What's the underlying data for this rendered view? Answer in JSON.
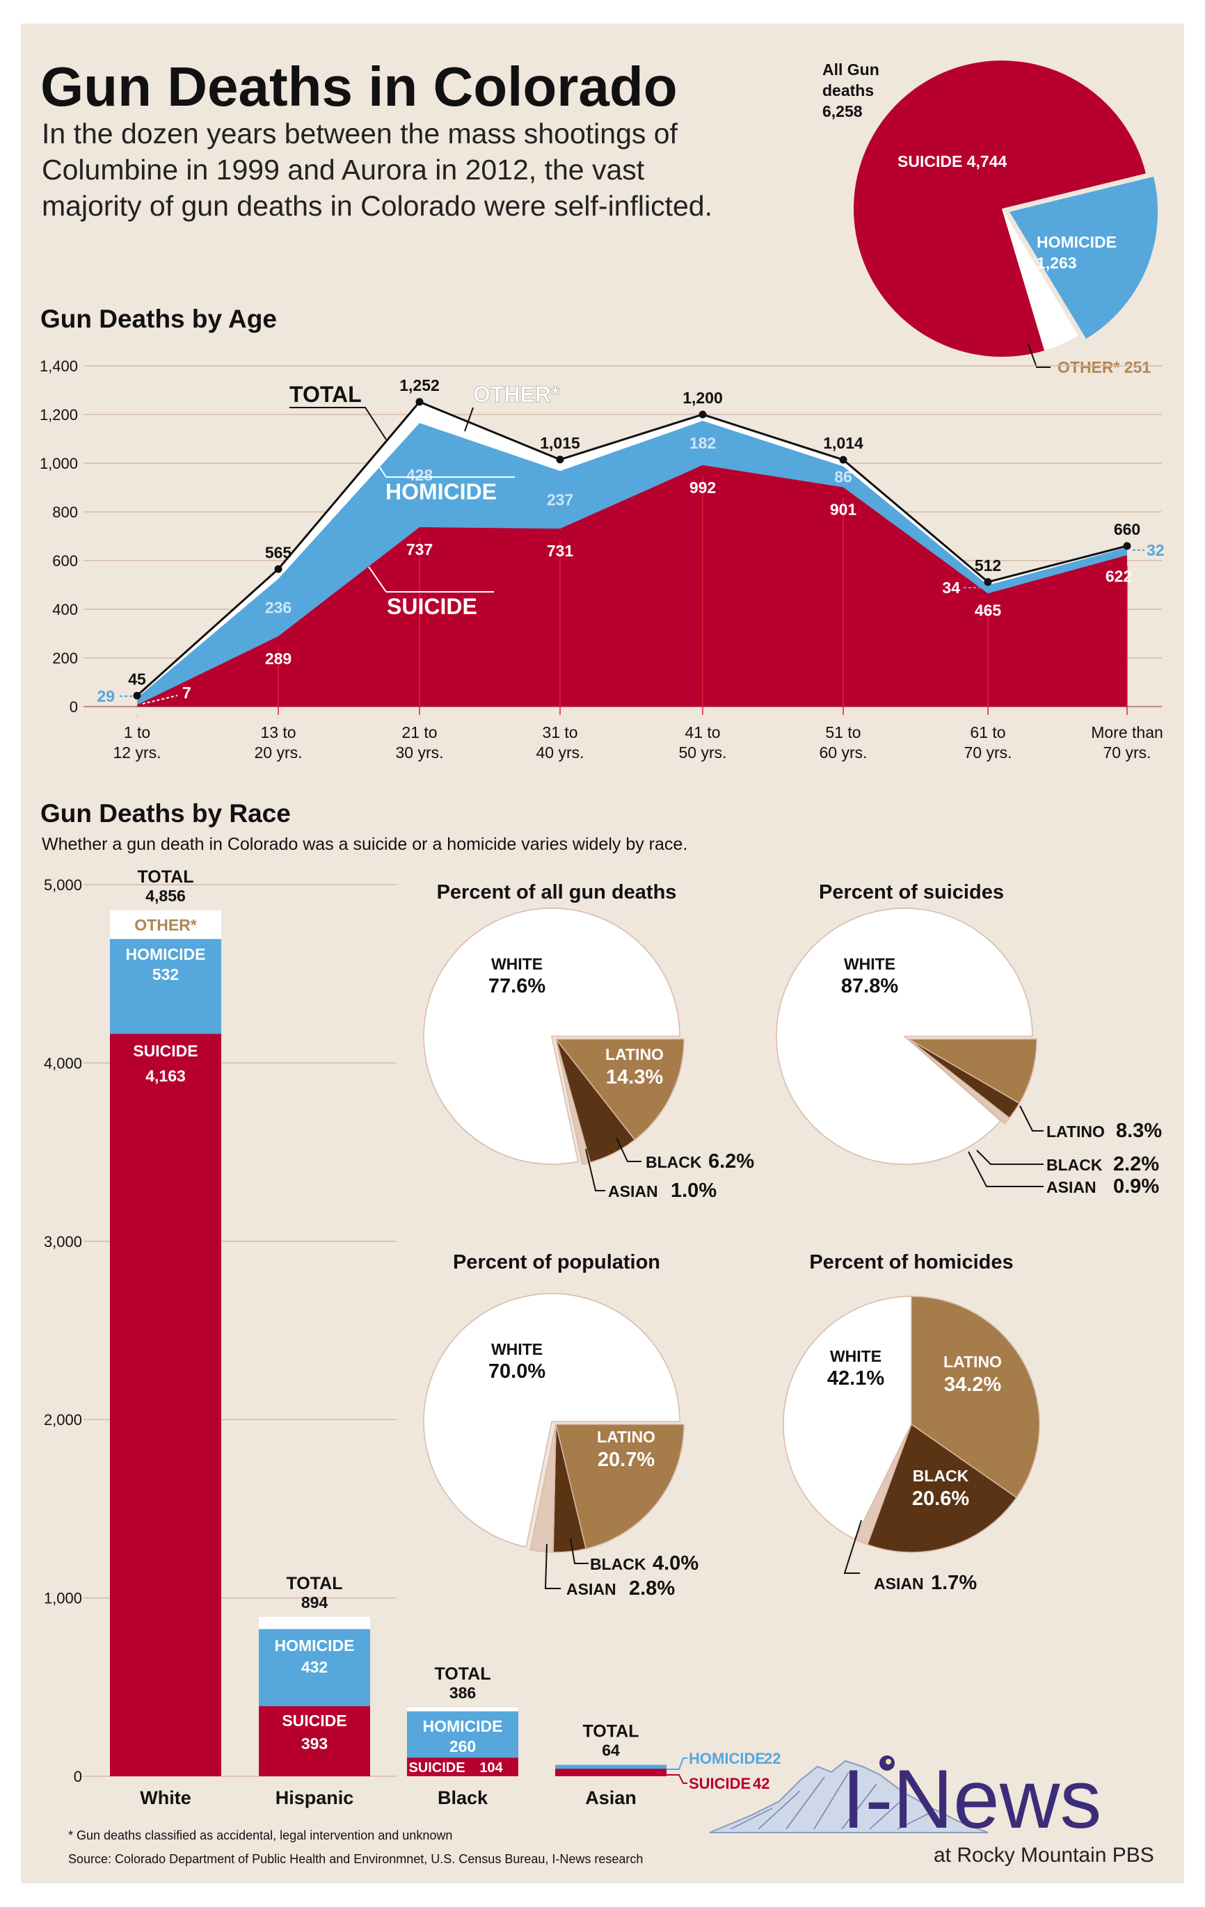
{
  "header": {
    "title": "Gun Deaths in Colorado",
    "subtitle_lines": [
      "In the dozen years between the mass shootings of",
      "Columbine in 1999 and Aurora in 2012, the vast",
      "majority of gun deaths in Colorado were self-inflicted."
    ]
  },
  "colors": {
    "background": "#efe6dc",
    "suicide": "#b8002e",
    "homicide": "#55a7dc",
    "other_label": "#b08650",
    "white_group": "#ffffff",
    "latino": "#a67c4a",
    "black_group": "#5a3414",
    "asian": "#e2c8b8",
    "grid": "#d9b9a8",
    "text": "#111111"
  },
  "chart_data": [
    {
      "type": "pie",
      "title": "",
      "total_label_lines": [
        "All Gun",
        "deaths",
        "6,258"
      ],
      "slices": [
        {
          "name": "SUICIDE",
          "label": "SUICIDE 4,744",
          "value": 4744,
          "color": "#b8002e"
        },
        {
          "name": "HOMICIDE",
          "label_lines": [
            "HOMICIDE",
            "1,263"
          ],
          "value": 1263,
          "color": "#55a7dc"
        },
        {
          "name": "OTHER*",
          "label": "OTHER* 251",
          "value": 251,
          "color": "#ffffff"
        }
      ]
    },
    {
      "type": "area",
      "title": "Gun Deaths by Age",
      "categories": [
        "1 to 12 yrs.",
        "13 to 20 yrs.",
        "21 to 30 yrs.",
        "31 to 40 yrs.",
        "41 to 50 yrs.",
        "51 to 60 yrs.",
        "61 to 70 yrs.",
        "More than 70 yrs."
      ],
      "category_lines": [
        [
          "1 to",
          "12 yrs."
        ],
        [
          "13 to",
          "20 yrs."
        ],
        [
          "21 to",
          "30 yrs."
        ],
        [
          "31 to",
          "40 yrs."
        ],
        [
          "41 to",
          "50 yrs."
        ],
        [
          "51 to",
          "60 yrs."
        ],
        [
          "61 to",
          "70 yrs."
        ],
        [
          "More than",
          "70 yrs."
        ]
      ],
      "series": [
        {
          "name": "SUICIDE",
          "values": [
            7,
            289,
            737,
            731,
            992,
            901,
            465,
            622
          ]
        },
        {
          "name": "HOMICIDE",
          "values": [
            29,
            236,
            428,
            237,
            182,
            86,
            34,
            32
          ]
        },
        {
          "name": "TOTAL",
          "values": [
            45,
            565,
            1252,
            1015,
            1200,
            1014,
            512,
            660
          ]
        }
      ],
      "total_labels": [
        "45",
        "565",
        "1,252",
        "1,015",
        "1,200",
        "1,014",
        "512",
        "660"
      ],
      "legend": {
        "total": "TOTAL",
        "other": "OTHER*",
        "homicide": "HOMICIDE",
        "suicide": "SUICIDE"
      },
      "ylim": [
        0,
        1400
      ],
      "yticks": [
        0,
        200,
        400,
        600,
        800,
        1000,
        1200,
        1400
      ],
      "ytick_labels": [
        "0",
        "200",
        "400",
        "600",
        "800",
        "1,000",
        "1,200",
        "1,400"
      ],
      "grid": true
    },
    {
      "type": "bar",
      "title": "Gun Deaths by Race",
      "subtitle": "Whether a gun death in Colorado was a suicide or a homicide varies widely by race.",
      "categories": [
        "White",
        "Hispanic",
        "Black",
        "Asian"
      ],
      "series": [
        {
          "name": "SUICIDE",
          "values": [
            4163,
            393,
            104,
            42
          ]
        },
        {
          "name": "HOMICIDE",
          "values": [
            532,
            432,
            260,
            22
          ]
        },
        {
          "name": "TOTAL",
          "values": [
            4856,
            894,
            386,
            64
          ]
        }
      ],
      "seg_labels": {
        "suicide": [
          "4,163",
          "393",
          "104",
          "42"
        ],
        "homicide": [
          "532",
          "432",
          "260",
          "22"
        ],
        "total": [
          "4,856",
          "894",
          "386",
          "64"
        ]
      },
      "label_words": {
        "total": "TOTAL",
        "homicide": "HOMICIDE",
        "suicide": "SUICIDE",
        "other": "OTHER*"
      },
      "ylim": [
        0,
        5000
      ],
      "yticks": [
        0,
        1000,
        2000,
        3000,
        4000,
        5000
      ],
      "ytick_labels": [
        "0",
        "1,000",
        "2,000",
        "3,000",
        "4,000",
        "5,000"
      ],
      "grid": true
    },
    {
      "type": "pie",
      "title": "Percent of all gun deaths",
      "slices": [
        {
          "name": "WHITE",
          "value": 77.6,
          "label": "77.6%"
        },
        {
          "name": "LATINO",
          "value": 14.3,
          "label": "14.3%"
        },
        {
          "name": "BLACK",
          "value": 6.2,
          "label": "6.2%"
        },
        {
          "name": "ASIAN",
          "value": 1.0,
          "label": "1.0%"
        }
      ]
    },
    {
      "type": "pie",
      "title": "Percent of suicides",
      "slices": [
        {
          "name": "WHITE",
          "value": 87.8,
          "label": "87.8%"
        },
        {
          "name": "LATINO",
          "value": 8.3,
          "label": "8.3%"
        },
        {
          "name": "BLACK",
          "value": 2.2,
          "label": "2.2%"
        },
        {
          "name": "ASIAN",
          "value": 0.9,
          "label": "0.9%"
        }
      ]
    },
    {
      "type": "pie",
      "title": "Percent of population",
      "slices": [
        {
          "name": "WHITE",
          "value": 70.0,
          "label": "70.0%"
        },
        {
          "name": "LATINO",
          "value": 20.7,
          "label": "20.7%"
        },
        {
          "name": "BLACK",
          "value": 4.0,
          "label": "4.0%"
        },
        {
          "name": "ASIAN",
          "value": 2.8,
          "label": "2.8%"
        }
      ]
    },
    {
      "type": "pie",
      "title": "Percent of homicides",
      "slices": [
        {
          "name": "WHITE",
          "value": 42.1,
          "label": "42.1%"
        },
        {
          "name": "LATINO",
          "value": 34.2,
          "label": "34.2%"
        },
        {
          "name": "BLACK",
          "value": 20.6,
          "label": "20.6%"
        },
        {
          "name": "ASIAN",
          "value": 1.7,
          "label": "1.7%"
        }
      ]
    }
  ],
  "footer": {
    "note": "* Gun deaths classified as accidental, legal intervention and unknown",
    "source": "Source: Colorado Department of Public Health and Environmnet, U.S. Census Bureau, I-News research",
    "logo_text": "I-News",
    "logo_sub": "at Rocky Mountain PBS"
  }
}
